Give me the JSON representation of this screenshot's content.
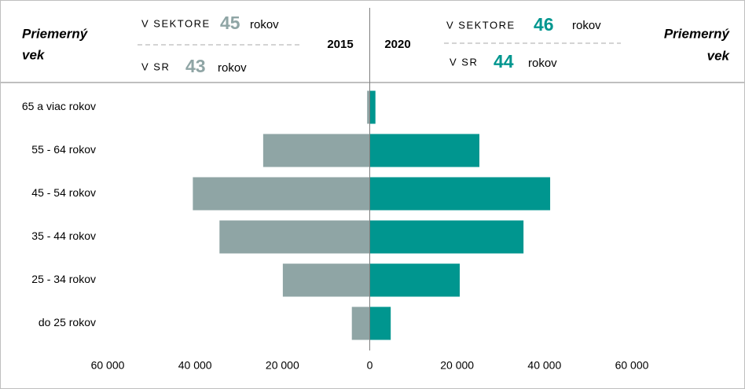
{
  "chart_data": {
    "type": "pyramid",
    "categories": [
      "65 a viac rokov",
      "55 - 64 rokov",
      "45 - 54 rokov",
      "35 - 44 rokov",
      "25 - 34 rokov",
      "do 25 rokov"
    ],
    "series": [
      {
        "name": "2015",
        "color": "#8fa5a5",
        "side": "left",
        "values": [
          600,
          24400,
          40500,
          34400,
          19900,
          4100
        ]
      },
      {
        "name": "2020",
        "color": "#00968f",
        "side": "right",
        "values": [
          1300,
          25100,
          41300,
          35200,
          20600,
          4800
        ]
      }
    ],
    "xlim": [
      -60000,
      60000
    ],
    "xticks": [
      {
        "value": -60000,
        "label": "60 000"
      },
      {
        "value": -40000,
        "label": "40 000"
      },
      {
        "value": -20000,
        "label": "20 000"
      },
      0,
      {
        "value": 20000,
        "label": "20 000"
      },
      {
        "value": 40000,
        "label": "40 000"
      },
      {
        "value": 60000,
        "label": "60 000"
      }
    ],
    "header": {
      "left": {
        "title_lines": [
          "Priemerný",
          "vek"
        ],
        "sector_label": "V SEKTORE",
        "sector_age": 45,
        "sector_unit": "rokov",
        "sr_label": "V SR",
        "sr_age": 43,
        "sr_unit": "rokov"
      },
      "right": {
        "title_lines": [
          "Priemerný",
          "vek"
        ],
        "sector_label": "V SEKTORE",
        "sector_age": 46,
        "sector_unit": "rokov",
        "sr_label": "V SR",
        "sr_age": 44,
        "sr_unit": "rokov"
      }
    }
  }
}
